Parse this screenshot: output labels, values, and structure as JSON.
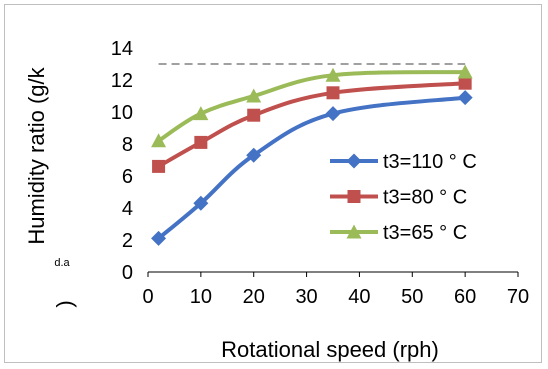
{
  "chart_data": {
    "type": "line",
    "xlabel": "Rotational speed (rph)",
    "ylabel": "Humidity ratio (g/k",
    "ylabel_subscript": "d.a",
    "ylabel_close": ")",
    "xlim": [
      0,
      70
    ],
    "ylim": [
      0,
      14
    ],
    "xticks": [
      "0",
      "10",
      "20",
      "30",
      "40",
      "50",
      "60",
      "70"
    ],
    "yticks": [
      "0",
      "2",
      "4",
      "6",
      "8",
      "10",
      "12",
      "14"
    ],
    "grid": false,
    "legend_position": "right",
    "reference_line": {
      "y": 13,
      "style": "dashed",
      "color": "#808080"
    },
    "series": [
      {
        "name": "t3=110 ° C",
        "color": "#4472C4",
        "marker": "diamond",
        "x": [
          2,
          10,
          20,
          35,
          60
        ],
        "y": [
          2.1,
          4.3,
          7.3,
          9.9,
          10.9
        ]
      },
      {
        "name": "t3=80 ° C",
        "color": "#C0504D",
        "marker": "square",
        "x": [
          2,
          10,
          20,
          35,
          60
        ],
        "y": [
          6.6,
          8.1,
          9.8,
          11.2,
          11.8
        ]
      },
      {
        "name": "t3=65 ° C",
        "color": "#9BBB59",
        "marker": "triangle",
        "x": [
          2,
          10,
          20,
          35,
          60
        ],
        "y": [
          8.2,
          9.9,
          11.0,
          12.3,
          12.5
        ]
      }
    ]
  }
}
